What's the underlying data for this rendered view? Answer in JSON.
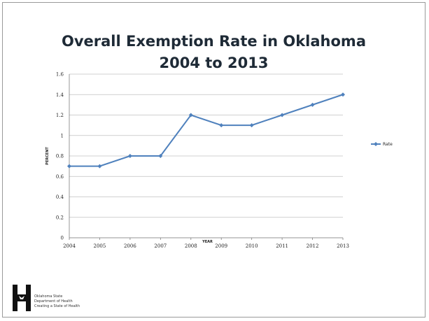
{
  "chart_data": {
    "type": "line",
    "title_lines": [
      "Overall Exemption Rate in Oklahoma",
      "2004 to 2013"
    ],
    "xlabel": "YEAR",
    "ylabel": "PERCENT",
    "categories": [
      "2004",
      "2005",
      "2006",
      "2007",
      "2008",
      "2009",
      "2010",
      "2011",
      "2012",
      "2013"
    ],
    "series": [
      {
        "name": "Rate",
        "values": [
          0.7,
          0.7,
          0.8,
          0.8,
          1.2,
          1.1,
          1.1,
          1.2,
          1.3,
          1.4
        ]
      }
    ],
    "ylim": [
      0,
      1.6
    ],
    "yticks": [
      "0",
      "0.2",
      "0.4",
      "0.6",
      "0.8",
      "1",
      "1.2",
      "1.4",
      "1.6"
    ],
    "grid": "horizontal",
    "legend_position": "right",
    "colors": {
      "line": "#4f81bd",
      "grid": "#c0c0c0",
      "axis": "#808080"
    }
  },
  "footer": {
    "logo_icon": "oklahoma-state-department-of-health-logo",
    "logo_lines": [
      "Oklahoma State",
      "Department of Health",
      "Creating a State of Health"
    ]
  }
}
